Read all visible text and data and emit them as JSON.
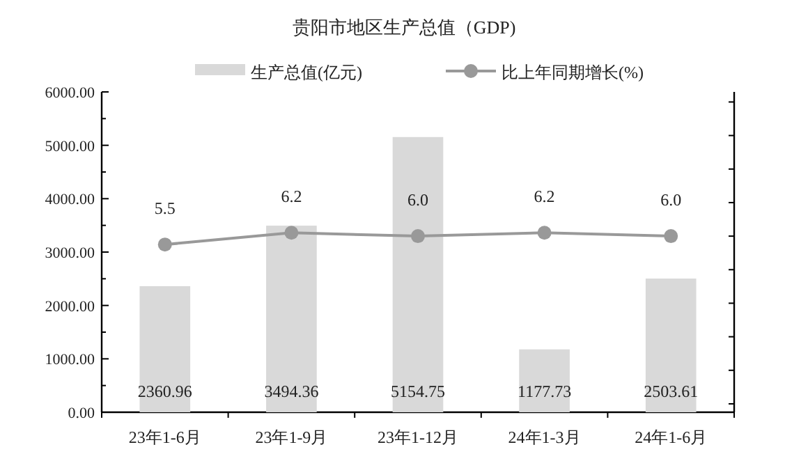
{
  "chart_data": {
    "type": "bar",
    "title": "贵阳市地区生产总值（GDP)",
    "categories": [
      "23年1-6月",
      "23年1-9月",
      "23年1-12月",
      "24年1-3月",
      "24年1-6月"
    ],
    "series": [
      {
        "name": "生产总值(亿元)",
        "color": "#d9d9d9",
        "values": [
          2360.96,
          3494.36,
          5154.75,
          1177.73,
          2503.61
        ]
      },
      {
        "name": "比上年同期增长(%)",
        "type": "line",
        "axis": "y2",
        "color": "#999999",
        "marker": "circle",
        "values": [
          5.5,
          6.2,
          6.0,
          6.2,
          6.0
        ],
        "value_labels": [
          "5.5",
          "6.2",
          "6.0",
          "6.2",
          "6.0"
        ]
      }
    ],
    "data_labels": true,
    "legend": "top",
    "grid": false,
    "ylim": [
      0,
      6000
    ],
    "yticks": [
      {
        "value": 0,
        "label": "0.00"
      },
      {
        "value": 500,
        "label": null
      },
      {
        "value": 1000,
        "label": "1000.00"
      },
      {
        "value": 1500,
        "label": null
      },
      {
        "value": 2000,
        "label": "2000.00"
      },
      {
        "value": 2500,
        "label": null
      },
      {
        "value": 3000,
        "label": "3000.00"
      },
      {
        "value": 3500,
        "label": null
      },
      {
        "value": 4000,
        "label": "4000.00"
      },
      {
        "value": 4500,
        "label": null
      },
      {
        "value": 5000,
        "label": "5000.00"
      },
      {
        "value": 5500,
        "label": null
      },
      {
        "value": 6000,
        "label": "6000.00"
      }
    ],
    "y2lim": [
      -4.5,
      14.6
    ],
    "y2ticks": [
      {
        "value": -4,
        "label": null
      },
      {
        "value": -2,
        "label": null
      },
      {
        "value": 0,
        "label": null
      },
      {
        "value": 2,
        "label": null
      },
      {
        "value": 4,
        "label": null
      },
      {
        "value": 6,
        "label": null
      },
      {
        "value": 8,
        "label": null
      },
      {
        "value": 10,
        "label": null
      },
      {
        "value": 12,
        "label": null
      },
      {
        "value": 14,
        "label": null
      }
    ]
  }
}
